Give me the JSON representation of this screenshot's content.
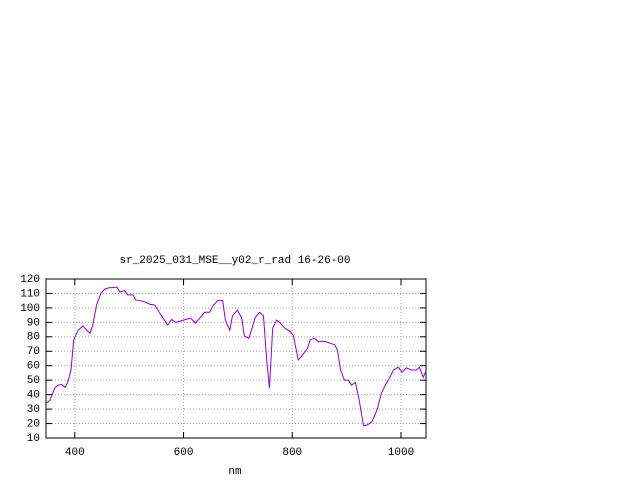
{
  "chart_data": {
    "type": "line",
    "title": "sr_2025_031_MSE__y02_r_rad 16-26-00",
    "x_label": "nm",
    "x": [
      347,
      354,
      363,
      369,
      376,
      382,
      387,
      393,
      398,
      406,
      415,
      422,
      428,
      433,
      440,
      448,
      455,
      464,
      472,
      477,
      483,
      492,
      497,
      507,
      512,
      521,
      530,
      538,
      547,
      556,
      565,
      571,
      578,
      585,
      595,
      604,
      613,
      622,
      630,
      639,
      648,
      655,
      663,
      672,
      677,
      685,
      690,
      699,
      707,
      712,
      720,
      725,
      732,
      740,
      747,
      753,
      758,
      764,
      771,
      778,
      786,
      795,
      802,
      811,
      819,
      828,
      833,
      841,
      848,
      855,
      863,
      870,
      878,
      883,
      889,
      896,
      903,
      909,
      916,
      923,
      931,
      938,
      947,
      956,
      964,
      971,
      979,
      986,
      995,
      1002,
      1010,
      1019,
      1028,
      1034,
      1041,
      1045
    ],
    "series": [
      {
        "color": "#9400d3",
        "values": [
          34,
          36,
          44.5,
          46.5,
          47,
          45,
          48.5,
          57,
          78,
          84.5,
          87.5,
          84.5,
          82.5,
          88,
          102,
          110,
          113,
          114,
          114,
          114.5,
          111,
          112,
          109,
          109,
          105.5,
          105,
          104,
          102.5,
          102,
          96.5,
          91.5,
          88,
          92,
          90,
          91,
          92,
          93,
          89.5,
          93,
          97,
          97,
          102,
          105,
          105,
          91.5,
          84.5,
          94.5,
          98.5,
          93,
          80.5,
          79,
          84.5,
          93.5,
          97,
          94.5,
          64,
          44.5,
          86,
          91.5,
          89.5,
          86,
          84,
          81,
          64,
          67.5,
          72,
          78,
          79,
          76.5,
          77,
          76.5,
          75.5,
          74.5,
          71,
          57,
          50,
          50,
          46.5,
          48.5,
          36.5,
          18.5,
          19,
          21.5,
          29.5,
          41,
          46.5,
          51.5,
          57,
          59,
          55.5,
          58.5,
          57,
          57,
          59,
          52,
          55.5
        ]
      }
    ],
    "xlim": [
      347,
      1046
    ],
    "ylim": [
      10,
      120
    ],
    "xticks": [
      400,
      600,
      800,
      1000
    ],
    "yticks": [
      10,
      20,
      30,
      40,
      50,
      60,
      70,
      80,
      90,
      100,
      110,
      120
    ],
    "grid": true
  }
}
